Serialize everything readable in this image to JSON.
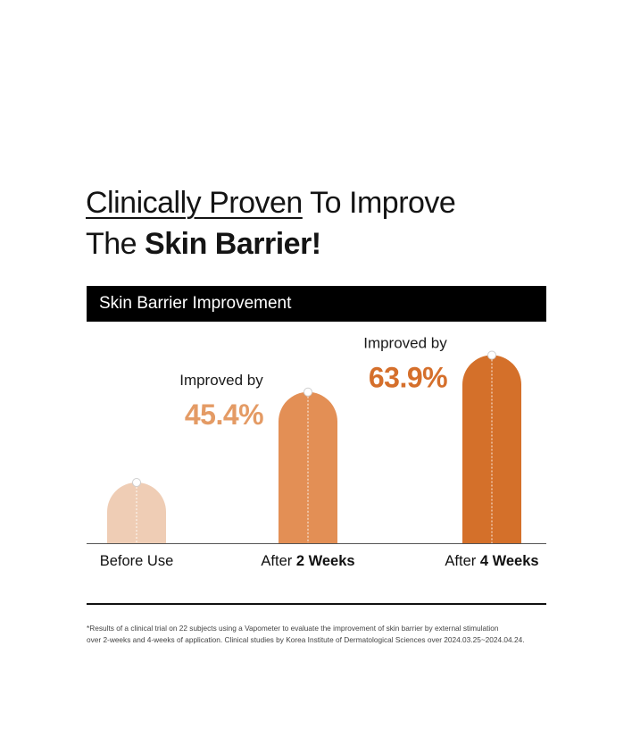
{
  "headline": {
    "line1_underlined": "Clinically Proven",
    "line1_rest": " To Improve",
    "line2_plain": "The ",
    "line2_bold": "Skin Barrier!"
  },
  "chart_data": {
    "type": "bar",
    "title": "Skin Barrier Improvement",
    "categories": [
      {
        "prefix": "Before Use",
        "bold": ""
      },
      {
        "prefix": "After ",
        "bold": "2 Weeks"
      },
      {
        "prefix": "After ",
        "bold": "4 Weeks"
      }
    ],
    "values": [
      0,
      45.4,
      63.9
    ],
    "annotations": [
      null,
      {
        "label": "Improved by",
        "value": "45.4%"
      },
      {
        "label": "Improved by",
        "value": "63.9%"
      }
    ],
    "colors": [
      "#EFCDB5",
      "#E38F55",
      "#D4702A"
    ],
    "value_colors": [
      "#EFCDB5",
      "#E49B65",
      "#D56F2B"
    ],
    "xlabel": "",
    "ylabel": ""
  },
  "footnote": {
    "line1": "*Results of a clinical trial on 22 subjects using a Vapometer to evaluate the improvement of skin barrier by external stimulation",
    "line2": "over 2-weeks and 4-weeks of application. Clinical studies by Korea Institute of Dermatological Sciences over 2024.03.25~2024.04.24."
  }
}
